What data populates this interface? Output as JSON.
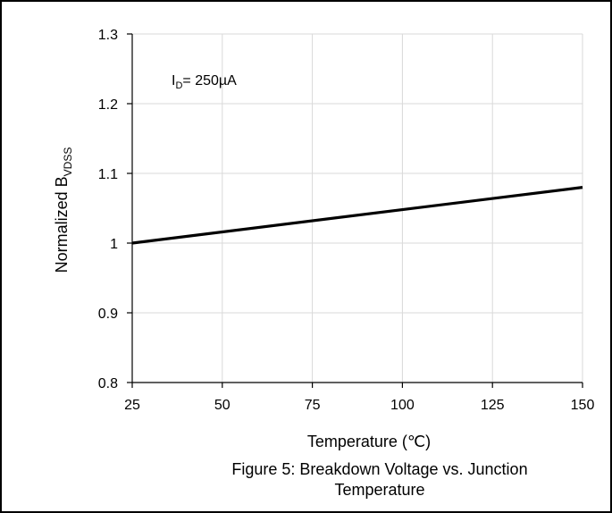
{
  "chart_data": {
    "type": "line",
    "x": [
      25,
      150
    ],
    "series": [
      {
        "values": [
          1.0,
          1.08
        ],
        "color": "#000000"
      }
    ],
    "xlim": [
      25,
      150
    ],
    "ylim": [
      0.8,
      1.3
    ],
    "x_ticks": [
      "25",
      "50",
      "75",
      "100",
      "125",
      "150"
    ],
    "y_ticks": [
      "0.8",
      "0.9",
      "1",
      "1.1",
      "1.2",
      "1.3"
    ],
    "xlabel": "Temperature (℃)",
    "ylabel": {
      "main": "Normalized B",
      "sub": "VDSS"
    },
    "annotation": {
      "main": "I",
      "sub": "D",
      "rest": "= 250µA"
    },
    "grid": true,
    "caption": [
      "Figure 5: Breakdown Voltage vs. Junction",
      "Temperature"
    ]
  }
}
